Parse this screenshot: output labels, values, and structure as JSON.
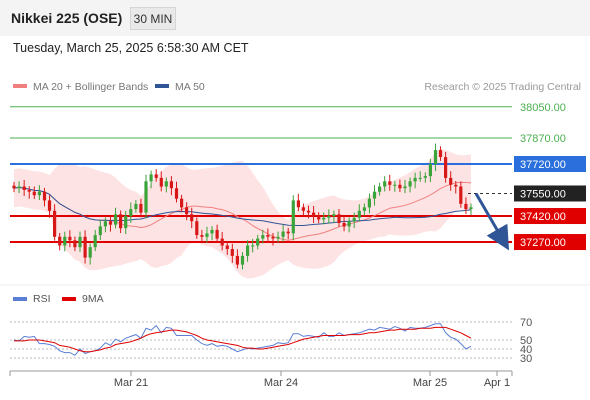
{
  "header": {
    "title": "Nikkei 225 (OSE)",
    "timeframe": "30 MIN",
    "timestamp": "Tuesday, March 25, 2025 6:58:30 AM CET"
  },
  "legend": {
    "ma20_label": "MA 20 + Bollinger Bands",
    "ma20_color": "#f08080",
    "ma50_label": "MA 50",
    "ma50_color": "#2f5597"
  },
  "copyright": "Research © 2025 Trading Central",
  "chart_data": [
    {
      "type": "candlestick",
      "ylim": [
        36930,
        38130
      ],
      "x_ticks": [
        "Mar 21",
        "Mar 24",
        "Mar 25",
        "Apr 1"
      ],
      "levels": [
        {
          "value": 38050.0,
          "label": "38050.00",
          "color": "#4caf50",
          "style": "thin"
        },
        {
          "value": 37870.0,
          "label": "37870.00",
          "color": "#4caf50",
          "style": "thin"
        },
        {
          "value": 37720.0,
          "label": "37720.00",
          "color": "#2a6fdb",
          "style": "thick"
        },
        {
          "value": 37550.0,
          "label": "37550.00",
          "color": "#333333",
          "style": "current"
        },
        {
          "value": 37420.0,
          "label": "37420.00",
          "color": "#e00000",
          "style": "thick"
        },
        {
          "value": 37270.0,
          "label": "37270.00",
          "color": "#e00000",
          "style": "thick"
        }
      ],
      "closes": [
        37580,
        37590,
        37570,
        37560,
        37540,
        37560,
        37510,
        37450,
        37300,
        37250,
        37300,
        37280,
        37240,
        37300,
        37180,
        37240,
        37310,
        37360,
        37390,
        37370,
        37430,
        37350,
        37420,
        37460,
        37490,
        37440,
        37620,
        37660,
        37640,
        37590,
        37620,
        37580,
        37520,
        37470,
        37430,
        37390,
        37310,
        37300,
        37320,
        37340,
        37290,
        37250,
        37230,
        37190,
        37140,
        37190,
        37250,
        37250,
        37290,
        37310,
        37300,
        37290,
        37300,
        37330,
        37320,
        37510,
        37470,
        37450,
        37440,
        37420,
        37400,
        37410,
        37420,
        37430,
        37380,
        37360,
        37390,
        37410,
        37450,
        37470,
        37520,
        37560,
        37590,
        37620,
        37600,
        37600,
        37580,
        37590,
        37620,
        37640,
        37640,
        37650,
        37720,
        37800,
        37760,
        37640,
        37600,
        37590,
        37490,
        37460,
        37470
      ],
      "current_value": 37550.0,
      "forecast_arrow_target": 37270.0
    },
    {
      "type": "line",
      "title": "",
      "series": [
        {
          "name": "RSI",
          "color": "#5b7fd6",
          "values": [
            50,
            49,
            54,
            53,
            54,
            46,
            46,
            45,
            43,
            38,
            36,
            36,
            33,
            40,
            35,
            37,
            38,
            41,
            47,
            44,
            51,
            48,
            52,
            54,
            56,
            52,
            63,
            61,
            66,
            58,
            64,
            63,
            55,
            55,
            55,
            55,
            50,
            46,
            44,
            46,
            43,
            44,
            43,
            40,
            37,
            39,
            41,
            40,
            41,
            42,
            43,
            44,
            47,
            46,
            47,
            57,
            57,
            54,
            55,
            54,
            53,
            58,
            54,
            54,
            58,
            55,
            56,
            57,
            58,
            60,
            62,
            61,
            64,
            63,
            62,
            65,
            63,
            60,
            64,
            63,
            63,
            64,
            66,
            68,
            68,
            58,
            53,
            51,
            46,
            40,
            43
          ]
        },
        {
          "name": "9MA",
          "color": "#e00000",
          "values": [
            49,
            49,
            49,
            50,
            50,
            50,
            49,
            48,
            47,
            44,
            43,
            42,
            40,
            38,
            37,
            37,
            38,
            39,
            41,
            42,
            45,
            46,
            47,
            48,
            50,
            52,
            55,
            57,
            58,
            59,
            60,
            61,
            61,
            60,
            59,
            57,
            55,
            52,
            50,
            49,
            48,
            47,
            46,
            45,
            44,
            42,
            41,
            41,
            40,
            40,
            41,
            42,
            43,
            44,
            45,
            47,
            49,
            51,
            52,
            53,
            54,
            55,
            55,
            55,
            55,
            55,
            56,
            56,
            56,
            57,
            58,
            58,
            59,
            60,
            61,
            61,
            62,
            62,
            62,
            62,
            63,
            63,
            63,
            64,
            64,
            64,
            62,
            60,
            58,
            55,
            52
          ]
        }
      ],
      "ylim": [
        20,
        75
      ],
      "y_ticks": [
        "70",
        "50",
        "40",
        "30"
      ],
      "x_ticks": [
        "Mar 21",
        "Mar 24",
        "Mar 25",
        "Apr 1"
      ]
    }
  ]
}
